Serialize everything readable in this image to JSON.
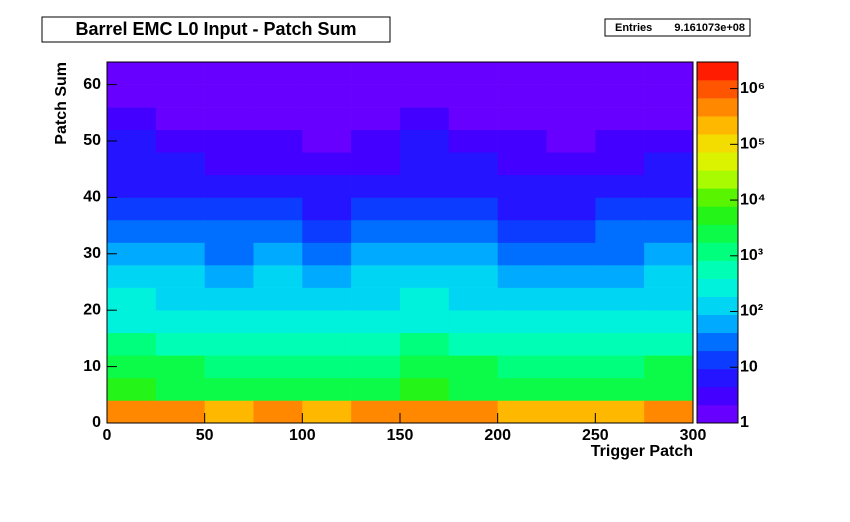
{
  "chart_data": {
    "type": "heatmap",
    "title": "Barrel EMC L0 Input - Patch Sum",
    "stats": {
      "name": "Entries",
      "value": 916107300,
      "value_label": "9.161073e+08"
    },
    "x_label": "Trigger Patch",
    "y_label": "Patch Sum",
    "xbins": [
      0,
      25,
      50,
      75,
      100,
      125,
      150,
      175,
      200,
      225,
      250,
      275,
      300
    ],
    "ybins": [
      0,
      4,
      8,
      12,
      16,
      20,
      24,
      28,
      32,
      36,
      40,
      44,
      48,
      52,
      56,
      60,
      64
    ],
    "z": [
      [
        450000,
        360000,
        300000,
        330000,
        240000,
        330000,
        450000,
        360000,
        270000,
        240000,
        300000,
        360000
      ],
      [
        4500,
        3600,
        3000,
        3300,
        2400,
        3300,
        4500,
        3600,
        2700,
        2400,
        3000,
        3600
      ],
      [
        2200,
        1800,
        1500,
        1600,
        1200,
        1600,
        2200,
        1800,
        1300,
        1200,
        1500,
        1800
      ],
      [
        900,
        720,
        600,
        660,
        480,
        660,
        900,
        720,
        540,
        480,
        600,
        720
      ],
      [
        380,
        300,
        250,
        280,
        200,
        280,
        380,
        300,
        220,
        200,
        250,
        300
      ],
      [
        220,
        180,
        150,
        160,
        120,
        160,
        220,
        180,
        140,
        120,
        150,
        180
      ],
      [
        120,
        96,
        80,
        88,
        64,
        88,
        120,
        96,
        72,
        64,
        80,
        96
      ],
      [
        60,
        48,
        40,
        44,
        32,
        44,
        60,
        48,
        36,
        32,
        40,
        48
      ],
      [
        30,
        24,
        20,
        22,
        16,
        22,
        30,
        24,
        18,
        16,
        20,
        24
      ],
      [
        15,
        12,
        10,
        11,
        8,
        11,
        15,
        12,
        9,
        8,
        10,
        12
      ],
      [
        9,
        7,
        6,
        7,
        5,
        7,
        9,
        7,
        5,
        5,
        6,
        7
      ],
      [
        6,
        5,
        4,
        4,
        3,
        4,
        6,
        5,
        4,
        3,
        4,
        5
      ],
      [
        5,
        4,
        3,
        3,
        2,
        3,
        5,
        4,
        3,
        2,
        3,
        4
      ],
      [
        3,
        2,
        2,
        2,
        2,
        2,
        3,
        2,
        2,
        2,
        2,
        2
      ],
      [
        2,
        2,
        2,
        2,
        1,
        2,
        2,
        2,
        1,
        1,
        2,
        2
      ],
      [
        2,
        1,
        1,
        1,
        1,
        1,
        2,
        1,
        1,
        1,
        1,
        1
      ]
    ],
    "xlim": [
      0,
      300
    ],
    "ylim": [
      0,
      64
    ],
    "xticks": [
      0,
      50,
      100,
      150,
      200,
      250,
      300
    ],
    "yticks": [
      0,
      10,
      20,
      30,
      40,
      50,
      60
    ],
    "zlim": [
      1,
      3000000
    ],
    "zlog": true,
    "zticks": [
      1,
      10,
      {
        "value": 100,
        "label": "10²"
      },
      {
        "value": 1000,
        "label": "10³"
      },
      {
        "value": 10000,
        "label": "10⁴"
      },
      {
        "value": 100000,
        "label": "10⁵"
      },
      {
        "value": 1000000,
        "label": "10⁶"
      }
    ],
    "colormap": [
      "#7a00ff",
      "#3000ff",
      "#0050ff",
      "#00c8ff",
      "#00ffd0",
      "#00ff60",
      "#30f000",
      "#d0ff00",
      "#ffd000",
      "#ff7000",
      "#ff0000"
    ]
  }
}
